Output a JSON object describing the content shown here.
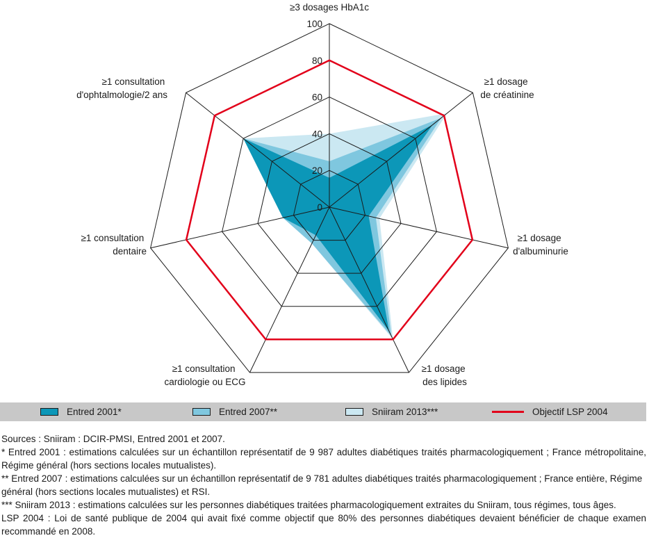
{
  "chart_data": {
    "type": "radar",
    "axes": [
      "≥3 dosages HbA1c",
      "≥1 dosage de créatinine",
      "≥1 dosage d'albuminurie",
      "≥1 dosage des lipides",
      "≥1 consultation cardiologie ou ECG",
      "≥1 consultation dentaire",
      "≥1 consultation d'ophtalmologie/2 ans"
    ],
    "axis_label_lines": [
      [
        "≥3 dosages HbA1c"
      ],
      [
        "≥1 dosage",
        "de créatinine"
      ],
      [
        "≥1 dosage",
        "d'albuminurie"
      ],
      [
        "≥1 dosage",
        "des lipides"
      ],
      [
        "≥1 consultation",
        "cardiologie ou ECG"
      ],
      [
        "≥1 consultation",
        "dentaire"
      ],
      [
        "≥1 consultation",
        "d'ophtalmologie/2 ans"
      ]
    ],
    "range": [
      0,
      100
    ],
    "ticks": [
      "0",
      "20",
      "40",
      "60",
      "80",
      "100"
    ],
    "tick_values": [
      0,
      20,
      40,
      60,
      80,
      100
    ],
    "series": [
      {
        "name": "Entred 2001*",
        "values": [
          16,
          72,
          22,
          75,
          17,
          26,
          60
        ],
        "color": "#0c97b8"
      },
      {
        "name": "Entred 2007**",
        "values": [
          25,
          78,
          26,
          78,
          22,
          26,
          60
        ],
        "color": "#7fc7df"
      },
      {
        "name": "Sniiram 2013***",
        "values": [
          40,
          82,
          28,
          80,
          22,
          26,
          60
        ],
        "color": "#cbe8f2"
      },
      {
        "name": "Objectif LSP 2004",
        "values": [
          80,
          80,
          80,
          80,
          80,
          80,
          80
        ],
        "color": "#e2001a"
      }
    ]
  },
  "legend": [
    {
      "label": "Entred 2001*",
      "color": "#0c97b8"
    },
    {
      "label": "Entred 2007**",
      "color": "#7fc7df"
    },
    {
      "label": "Sniiram 2013***",
      "color": "#cbe8f2"
    },
    {
      "label": "Objectif LSP 2004",
      "color": "#e2001a"
    }
  ],
  "notes": {
    "sources": "Sources : Sniiram : DCIR-PMSI, Entred 2001 et 2007.",
    "entred2001": "* Entred 2001 : estimations calculées sur un échantillon représentatif de 9 987 adultes diabétiques traités pharmacologiquement ; France métropolitaine, Régime général (hors sections locales mutualistes).",
    "entred2007": "** Entred 2007 : estimations calculées sur un échantillon représentatif de 9 781 adultes diabétiques traités pharmacologiquement ; France entière, Régime général (hors sections locales mutualistes) et RSI.",
    "sniiram2013": "*** Sniiram 2013 : estimations calculées sur les personnes diabétiques traitées pharmacologiquement extraites du Sniiram, tous régimes, tous âges.",
    "lsp2004": "LSP 2004 : Loi de santé publique de 2004 qui avait fixé comme objectif que 80% des personnes diabétiques devaient bénéficier de chaque examen recommandé en 2008."
  }
}
